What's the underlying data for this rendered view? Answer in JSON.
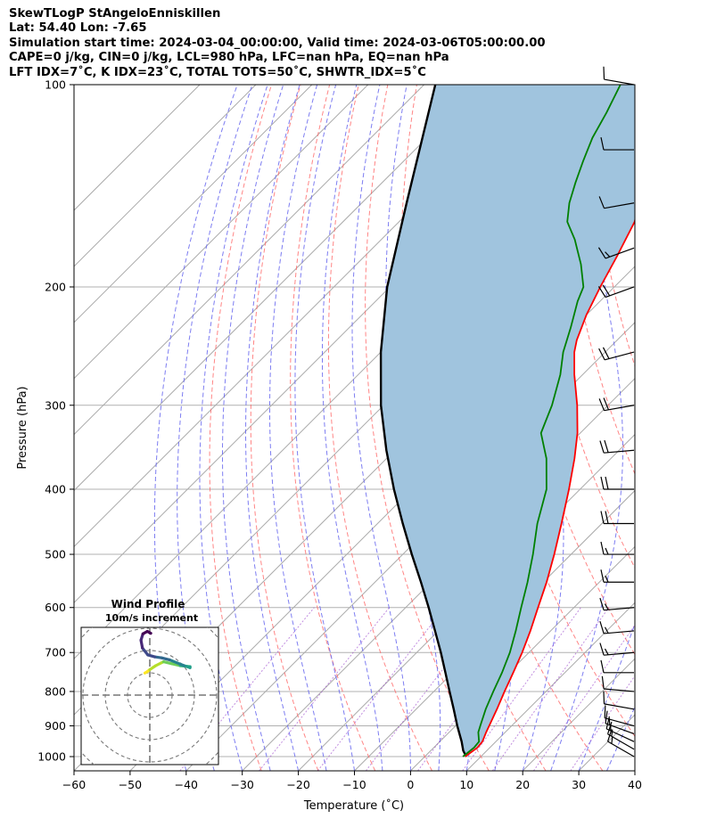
{
  "title_lines": [
    "SkewTLogP StAngeloEnniskillen",
    "Lat: 54.40   Lon: -7.65",
    "Simulation start time: 2024-03-04_00:00:00, Valid time: 2024-03-06T05:00:00.00",
    "CAPE=0 j/kg, CIN=0 j/kg, LCL=980 hPa, LFC=nan hPa, EQ=nan hPa",
    "LFT IDX=7˚C, K IDX=23˚C, TOTAL TOTS=50˚C, SHWTR_IDX=5˚C"
  ],
  "colors": {
    "temperature": "#ff0000",
    "dewpoint": "#008000",
    "parcel": "#000000",
    "shading": "#a0c4de",
    "dry_adiabat": "#ff6666",
    "moist_adiabat": "#6666ee",
    "mixing_ratio": "#9944cc",
    "isotherm": "#aaaaaa",
    "grid": "#b0b0b0"
  },
  "chart_data": {
    "type": "line",
    "xlabel": "Temperature (˚C)",
    "ylabel": "Pressure (hPa)",
    "xlim": [
      -60,
      40
    ],
    "ylim": [
      1050,
      100
    ],
    "y_scale": "log",
    "x_ticks": [
      -60,
      -50,
      -40,
      -30,
      -20,
      -10,
      0,
      10,
      20,
      30,
      40
    ],
    "x_tick_labels": [
      "−60",
      "−50",
      "−40",
      "−30",
      "−20",
      "−10",
      "0",
      "10",
      "20",
      "30",
      "40"
    ],
    "y_ticks": [
      1000,
      900,
      800,
      700,
      600,
      500,
      400,
      300,
      200,
      100
    ],
    "y_tick_labels": [
      "1000",
      "900",
      "800",
      "700",
      "600",
      "500",
      "400",
      "300",
      "200",
      "100"
    ],
    "grid": true,
    "series": [
      {
        "key": "temperature",
        "pressure": [
          1000,
          970,
          950,
          920,
          900,
          850,
          800,
          750,
          700,
          650,
          600,
          550,
          500,
          450,
          400,
          360,
          330,
          300,
          270,
          250,
          240,
          220,
          200,
          180,
          160,
          150,
          140,
          130,
          120,
          110,
          100
        ],
        "temp": [
          7.2,
          7.8,
          7.6,
          6.6,
          6.0,
          4.4,
          2.6,
          0.8,
          -1.2,
          -3.6,
          -6.4,
          -9.4,
          -13.0,
          -17.2,
          -22.0,
          -26.5,
          -30.5,
          -35.5,
          -41.5,
          -45.5,
          -47.2,
          -50.0,
          -52.5,
          -55.0,
          -58.0,
          -60.5,
          -62.0,
          -64.5,
          -67.0,
          -69.5,
          -72.0
        ]
      },
      {
        "key": "dewpoint",
        "pressure": [
          1000,
          970,
          950,
          920,
          900,
          850,
          800,
          750,
          700,
          650,
          600,
          550,
          500,
          450,
          400,
          360,
          330,
          300,
          270,
          250,
          230,
          210,
          200,
          185,
          170,
          160,
          150,
          140,
          130,
          120,
          110,
          100
        ],
        "temp": [
          6.8,
          7.2,
          7.0,
          5.2,
          4.4,
          2.4,
          0.6,
          -1.2,
          -3.4,
          -6.2,
          -9.4,
          -12.8,
          -16.8,
          -21.5,
          -26.0,
          -31.5,
          -37.0,
          -40.0,
          -44.0,
          -47.5,
          -50.5,
          -54.0,
          -55.5,
          -60.0,
          -65.5,
          -70.0,
          -73.0,
          -75.5,
          -78.0,
          -80.5,
          -82.5,
          -85.0
        ]
      }
    ],
    "parcel": {
      "pressure": [
        1000,
        980,
        950,
        900,
        850,
        800,
        750,
        700,
        650,
        600,
        550,
        500,
        450,
        400,
        350,
        300,
        250,
        200,
        150,
        100
      ],
      "temp": [
        7.4,
        5.8,
        3.9,
        0.3,
        -3.3,
        -7.2,
        -11.3,
        -15.7,
        -20.6,
        -25.9,
        -31.8,
        -38.4,
        -45.5,
        -53.2,
        -61.5,
        -70.5,
        -80.0,
        -90.5,
        -102.0,
        -118.0
      ]
    },
    "wind_barbs": {
      "pressure": [
        1000,
        975,
        950,
        925,
        900,
        850,
        800,
        750,
        700,
        650,
        600,
        550,
        500,
        450,
        400,
        350,
        300,
        250,
        200,
        175,
        150,
        125,
        100
      ],
      "speed_kt": [
        15,
        15,
        15,
        15,
        10,
        10,
        10,
        10,
        15,
        15,
        15,
        15,
        15,
        20,
        20,
        20,
        20,
        20,
        20,
        15,
        10,
        10,
        10
      ],
      "dir_deg": [
        300,
        300,
        295,
        290,
        285,
        280,
        275,
        270,
        265,
        265,
        265,
        270,
        270,
        270,
        270,
        265,
        260,
        255,
        250,
        250,
        260,
        270,
        280
      ]
    },
    "hodograph": {
      "title": "Wind Profile",
      "subtitle": "10m/s increment",
      "u": [
        -1.0,
        -0.5,
        0.0,
        1.2,
        2.8,
        4.5,
        6.2,
        7.4,
        8.2,
        8.2,
        7.0,
        5.5,
        4.0,
        2.4,
        1.0,
        -0.4,
        -1.5,
        -1.8,
        -1.4,
        -0.5,
        0.2
      ],
      "v": [
        4.5,
        4.8,
        5.2,
        6.0,
        6.8,
        6.4,
        6.0,
        5.9,
        5.8,
        5.6,
        6.0,
        6.6,
        7.2,
        7.6,
        7.8,
        8.2,
        9.6,
        11.2,
        12.5,
        13.0,
        12.6
      ]
    }
  }
}
